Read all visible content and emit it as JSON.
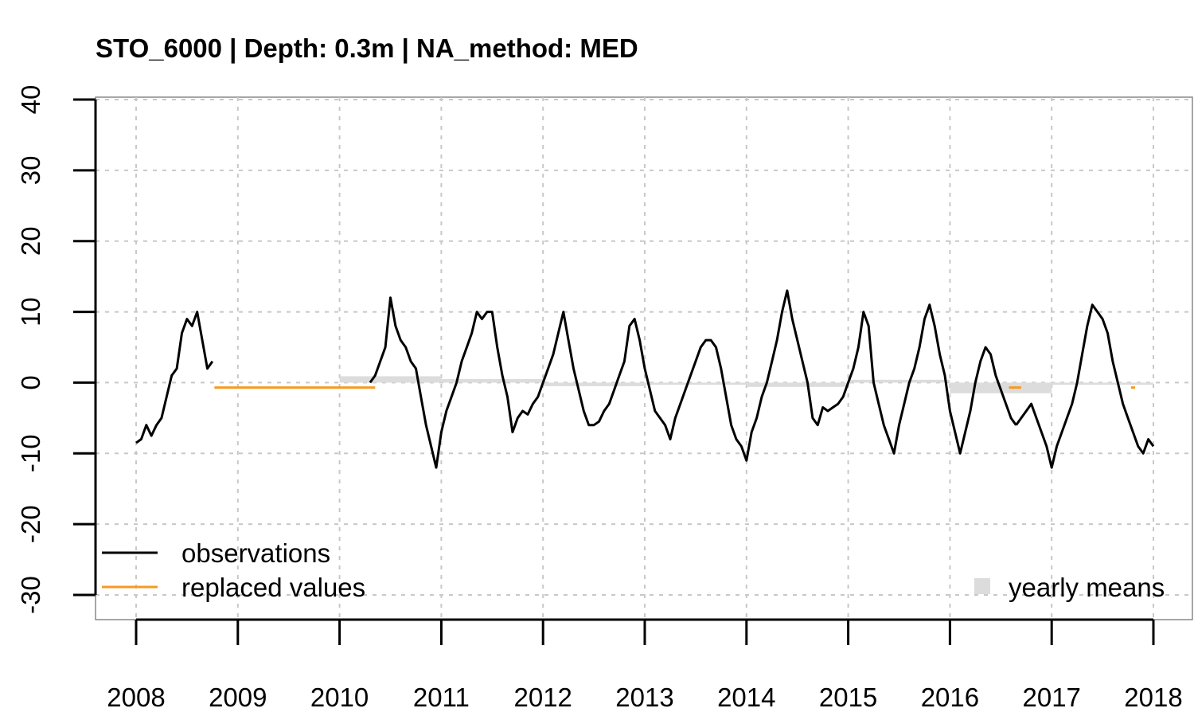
{
  "chart_data": {
    "type": "line",
    "title": "STO_6000 | Depth: 0.3m | NA_method: MED",
    "xlabel": "",
    "ylabel": "",
    "xlim": [
      2008.0,
      2018.0
    ],
    "ylim": [
      -30,
      40
    ],
    "x_ticks": [
      2008,
      2009,
      2010,
      2011,
      2012,
      2013,
      2014,
      2015,
      2016,
      2017,
      2018
    ],
    "y_ticks": [
      -30,
      -20,
      -10,
      0,
      10,
      20,
      30,
      40
    ],
    "grid": true,
    "colors": {
      "observations": "#000000",
      "replaced": "#f59a23",
      "yearly_means": "#dcdcdc",
      "grid": "#c8c8c8"
    },
    "legend": [
      {
        "label": "observations",
        "symbol": "line",
        "color": "#000000",
        "position": "bottom-left"
      },
      {
        "label": "replaced values",
        "symbol": "line",
        "color": "#f59a23",
        "position": "bottom-left"
      },
      {
        "label": "yearly means",
        "symbol": "square",
        "color": "#dcdcdc",
        "position": "bottom-right"
      }
    ],
    "series": [
      {
        "name": "observations",
        "segments": [
          {
            "x": [
              2008.0,
              2008.05,
              2008.1,
              2008.15,
              2008.2,
              2008.25,
              2008.3,
              2008.35,
              2008.4,
              2008.45,
              2008.5,
              2008.55,
              2008.6,
              2008.65,
              2008.7,
              2008.75
            ],
            "y": [
              -8.5,
              -8,
              -6,
              -7.5,
              -6,
              -5,
              -2,
              1,
              2,
              7,
              9,
              8,
              10,
              6,
              2,
              3
            ]
          },
          {
            "x": [
              2010.3,
              2010.35,
              2010.4,
              2010.45,
              2010.5,
              2010.55,
              2010.6,
              2010.65,
              2010.7,
              2010.75,
              2010.8,
              2010.85,
              2010.9,
              2010.95,
              2011.0,
              2011.05,
              2011.1,
              2011.15,
              2011.2,
              2011.25,
              2011.3,
              2011.35,
              2011.4,
              2011.45,
              2011.5,
              2011.55,
              2011.6,
              2011.65,
              2011.7,
              2011.75,
              2011.8,
              2011.85,
              2011.9,
              2011.95,
              2012.0,
              2012.05,
              2012.1,
              2012.15,
              2012.2,
              2012.25,
              2012.3,
              2012.35,
              2012.4,
              2012.45,
              2012.5,
              2012.55,
              2012.6,
              2012.65,
              2012.7,
              2012.75,
              2012.8,
              2012.85,
              2012.9,
              2012.95,
              2013.0,
              2013.05,
              2013.1,
              2013.15,
              2013.2,
              2013.25,
              2013.3,
              2013.35,
              2013.4,
              2013.45,
              2013.5,
              2013.55,
              2013.6,
              2013.65,
              2013.7,
              2013.75,
              2013.8,
              2013.85,
              2013.9,
              2013.95,
              2014.0,
              2014.05,
              2014.1,
              2014.15,
              2014.2,
              2014.25,
              2014.3,
              2014.35,
              2014.4,
              2014.45,
              2014.5,
              2014.55,
              2014.6,
              2014.65,
              2014.7,
              2014.75,
              2014.8,
              2014.85,
              2014.9,
              2014.95,
              2015.0,
              2015.05,
              2015.1,
              2015.15,
              2015.2,
              2015.25,
              2015.3,
              2015.35,
              2015.4,
              2015.45,
              2015.5,
              2015.55,
              2015.6,
              2015.65,
              2015.7,
              2015.75,
              2015.8,
              2015.85,
              2015.9,
              2015.95,
              2016.0,
              2016.05,
              2016.1,
              2016.15,
              2016.2,
              2016.25,
              2016.3,
              2016.35,
              2016.4,
              2016.45,
              2016.5,
              2016.55,
              2016.6,
              2016.65
            ],
            "y": [
              0,
              1,
              3,
              5,
              12,
              8,
              6,
              5,
              3,
              2,
              -2,
              -6,
              -9,
              -12,
              -7,
              -4,
              -2,
              0,
              3,
              5,
              7,
              10,
              9,
              10,
              10,
              5,
              1,
              -2,
              -7,
              -5,
              -4,
              -4.5,
              -3,
              -2,
              0,
              2,
              4,
              7,
              10,
              6,
              2,
              -1,
              -4,
              -6,
              -6,
              -5.5,
              -4,
              -3,
              -1,
              1,
              3,
              8,
              9,
              6,
              2,
              -1,
              -4,
              -5,
              -6,
              -8,
              -5,
              -3,
              -1,
              1,
              3,
              5,
              6,
              6,
              5,
              2,
              -2,
              -6,
              -8,
              -9,
              -11,
              -7,
              -5,
              -2,
              0,
              3,
              6,
              10,
              13,
              9,
              6,
              3,
              0,
              -5,
              -6,
              -3.5,
              -4,
              -3.5,
              -3,
              -2,
              0,
              2,
              5,
              10,
              8,
              0,
              -3,
              -6,
              -8,
              -10,
              -6,
              -3,
              0,
              2,
              5,
              9,
              11,
              8,
              4,
              1,
              -4,
              -7,
              -10,
              -7,
              -4,
              0,
              3,
              5,
              4,
              1,
              -1,
              -3,
              -5,
              -6
            ]
          },
          {
            "x": [
              2016.65,
              2016.7,
              2016.75,
              2016.8,
              2016.85,
              2016.9,
              2016.95,
              2017.0,
              2017.05,
              2017.1,
              2017.15,
              2017.2,
              2017.25,
              2017.3,
              2017.35,
              2017.4,
              2017.45,
              2017.5,
              2017.55,
              2017.6,
              2017.65,
              2017.7,
              2017.75,
              2017.8,
              2017.85,
              2017.9,
              2017.95,
              2018.0
            ],
            "y": [
              -6,
              -5,
              -4,
              -3,
              -5,
              -7,
              -9,
              -12,
              -9,
              -7,
              -5,
              -3,
              0,
              4,
              8,
              11,
              10,
              9,
              7,
              3,
              0,
              -3,
              -5,
              -7,
              -9,
              -10,
              -8,
              -9
            ]
          }
        ]
      },
      {
        "name": "replaced values",
        "segments": [
          {
            "x": [
              2008.77,
              2010.35
            ],
            "y": [
              -0.7,
              -0.7
            ]
          },
          {
            "x": [
              2016.58,
              2016.7
            ],
            "y": [
              -0.7,
              -0.7
            ]
          },
          {
            "x": [
              2017.78,
              2017.82
            ],
            "y": [
              -0.7,
              -0.7
            ]
          }
        ]
      },
      {
        "name": "yearly means",
        "bands": [
          {
            "x": [
              2010.0,
              2011.0
            ],
            "y": [
              0.0,
              0.9
            ]
          },
          {
            "x": [
              2011.0,
              2012.0
            ],
            "y": [
              0.0,
              0.5
            ]
          },
          {
            "x": [
              2012.0,
              2013.0
            ],
            "y": [
              -0.5,
              0.0
            ]
          },
          {
            "x": [
              2013.0,
              2014.0
            ],
            "y": [
              -0.3,
              0.0
            ]
          },
          {
            "x": [
              2014.0,
              2015.0
            ],
            "y": [
              -0.6,
              0.0
            ]
          },
          {
            "x": [
              2015.0,
              2016.0
            ],
            "y": [
              0.0,
              0.4
            ]
          },
          {
            "x": [
              2016.0,
              2017.0
            ],
            "y": [
              -1.5,
              0.0
            ]
          },
          {
            "x": [
              2017.0,
              2018.0
            ],
            "y": [
              -0.3,
              0.0
            ]
          }
        ]
      }
    ]
  }
}
